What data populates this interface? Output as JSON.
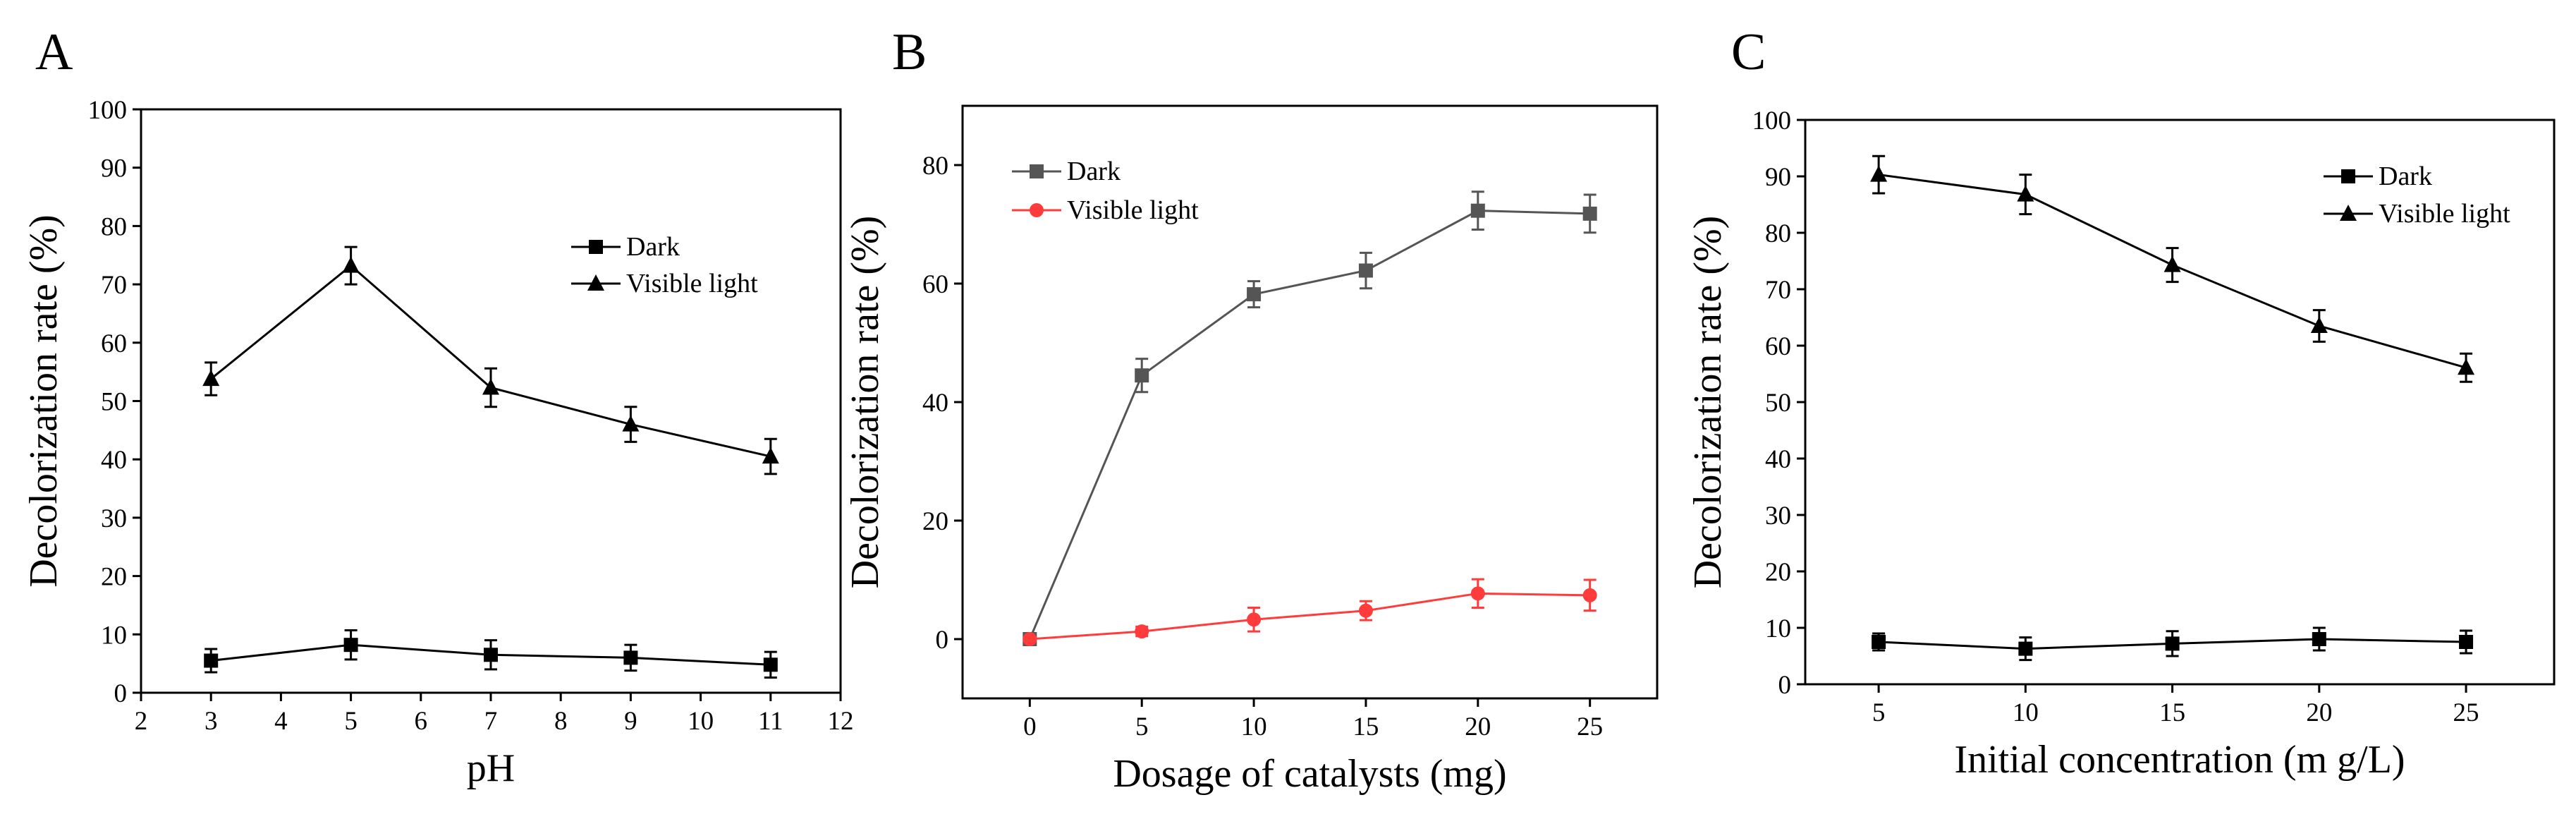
{
  "colors": {
    "black": "#000000",
    "grey": "#555555",
    "red": "#ff3b3b"
  },
  "chart_data": [
    {
      "panel": "A",
      "type": "line",
      "xlabel": "pH",
      "ylabel": "Decolorization rate (%)",
      "xlim": [
        2,
        12
      ],
      "ylim": [
        0,
        100
      ],
      "xticks": [
        2,
        3,
        4,
        5,
        6,
        7,
        8,
        9,
        10,
        11,
        12
      ],
      "yticks": [
        0,
        10,
        20,
        30,
        40,
        50,
        60,
        70,
        80,
        90,
        100
      ],
      "grid": false,
      "legend": "center-right",
      "series": [
        {
          "name": "Dark",
          "marker": "square",
          "color": "#000000",
          "x": [
            3,
            5,
            7,
            9,
            11
          ],
          "values": [
            5.5,
            8.2,
            6.5,
            6.0,
            4.8
          ],
          "err": [
            2.0,
            2.5,
            2.5,
            2.2,
            2.2
          ]
        },
        {
          "name": "Visible light",
          "marker": "triangle",
          "color": "#000000",
          "x": [
            3,
            5,
            7,
            9,
            11
          ],
          "values": [
            53.8,
            73.2,
            52.3,
            46.0,
            40.5
          ],
          "err": [
            2.8,
            3.2,
            3.3,
            3.0,
            3.0
          ]
        }
      ]
    },
    {
      "panel": "B",
      "type": "line",
      "xlabel": "Dosage of catalysts (mg)",
      "ylabel": "Decolorization rate (%)",
      "xlim": [
        -3,
        28
      ],
      "ylim": [
        -10,
        90
      ],
      "xticks": [
        0,
        5,
        10,
        15,
        20,
        25
      ],
      "yticks": [
        0,
        20,
        40,
        60,
        80
      ],
      "grid": false,
      "legend": "top-left",
      "series": [
        {
          "name": "Dark",
          "marker": "square",
          "color": "#555555",
          "x": [
            0,
            5,
            10,
            15,
            20,
            25
          ],
          "values": [
            0,
            44.5,
            58.2,
            62.2,
            72.3,
            71.8
          ],
          "err": [
            0,
            2.8,
            2.2,
            3.0,
            3.2,
            3.2
          ]
        },
        {
          "name": "Visible light",
          "marker": "circle",
          "color": "#ff3b3b",
          "x": [
            0,
            5,
            10,
            15,
            20,
            25
          ],
          "values": [
            0,
            1.3,
            3.3,
            4.8,
            7.7,
            7.4
          ],
          "err": [
            0,
            0.8,
            2.0,
            1.6,
            2.4,
            2.6
          ]
        }
      ]
    },
    {
      "panel": "C",
      "type": "line",
      "xlabel": "Initial concentration (m g/L)",
      "ylabel": "Decolorization rate (%)",
      "xlim": [
        2.5,
        28
      ],
      "ylim": [
        0,
        100
      ],
      "xticks": [
        5,
        10,
        15,
        20,
        25
      ],
      "yticks": [
        0,
        10,
        20,
        30,
        40,
        50,
        60,
        70,
        80,
        90,
        100
      ],
      "grid": false,
      "legend": "top-right",
      "series": [
        {
          "name": "Dark",
          "marker": "square",
          "color": "#000000",
          "x": [
            5,
            10,
            15,
            20,
            25
          ],
          "values": [
            7.5,
            6.3,
            7.2,
            8.0,
            7.5
          ],
          "err": [
            1.5,
            2.0,
            2.2,
            2.0,
            2.0
          ]
        },
        {
          "name": "Visible light",
          "marker": "triangle",
          "color": "#000000",
          "x": [
            5,
            10,
            15,
            20,
            25
          ],
          "values": [
            90.3,
            86.8,
            74.3,
            63.5,
            56.1
          ],
          "err": [
            3.3,
            3.5,
            3.0,
            2.8,
            2.5
          ]
        }
      ]
    }
  ]
}
